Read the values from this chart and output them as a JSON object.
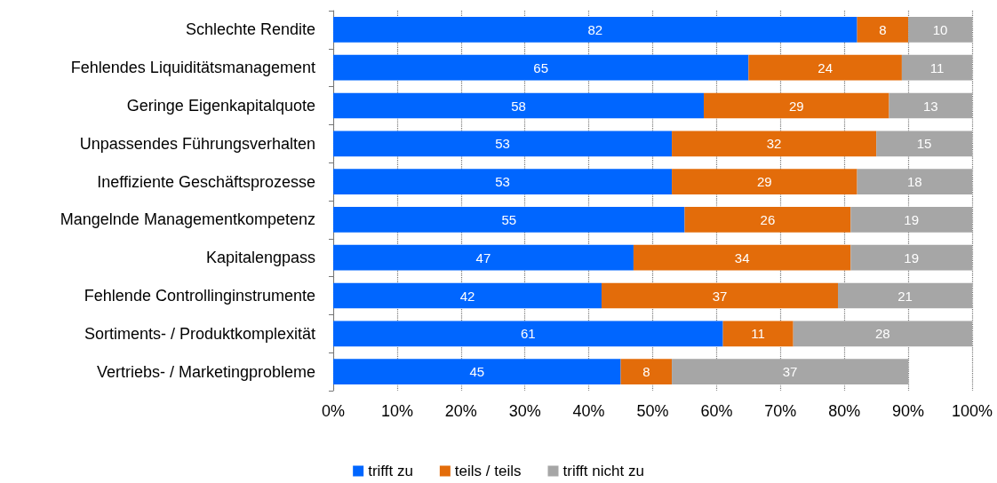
{
  "chart_data": {
    "type": "bar",
    "orientation": "horizontal",
    "stacked": true,
    "categories": [
      "Schlechte Rendite",
      "Fehlendes Liquiditätsmanagement",
      "Geringe Eigenkapitalquote",
      "Unpassendes Führungsverhalten",
      "Ineffiziente Geschäftsprozesse",
      "Mangelnde Managementkompetenz",
      "Kapitalengpass",
      "Fehlende Controllinginstrumente",
      "Sortiments- / Produktkomplexität",
      "Vertriebs- / Marketingprobleme"
    ],
    "series": [
      {
        "name": "trifft zu",
        "color": "#0066ff",
        "values": [
          82,
          65,
          58,
          53,
          53,
          55,
          47,
          42,
          61,
          45
        ]
      },
      {
        "name": "teils / teils",
        "color": "#e36c0a",
        "values": [
          8,
          24,
          29,
          32,
          29,
          26,
          34,
          37,
          11,
          8
        ]
      },
      {
        "name": "trifft nicht zu",
        "color": "#a6a6a6",
        "values": [
          10,
          11,
          13,
          15,
          18,
          19,
          19,
          21,
          28,
          37
        ]
      }
    ],
    "xlim": [
      0,
      100
    ],
    "xticks": [
      {
        "value": 0,
        "label": "0%"
      },
      {
        "value": 10,
        "label": "10%"
      },
      {
        "value": 20,
        "label": "20%"
      },
      {
        "value": 30,
        "label": "30%"
      },
      {
        "value": 40,
        "label": "40%"
      },
      {
        "value": 50,
        "label": "50%"
      },
      {
        "value": 60,
        "label": "60%"
      },
      {
        "value": 70,
        "label": "70%"
      },
      {
        "value": 80,
        "label": "80%"
      },
      {
        "value": 90,
        "label": "90%"
      },
      {
        "value": 100,
        "label": "100%"
      }
    ],
    "grid": "x",
    "legend": "bottom",
    "data_labels": true
  }
}
